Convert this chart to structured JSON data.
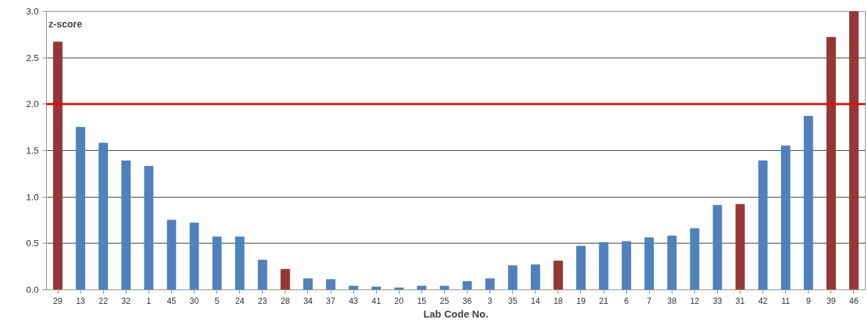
{
  "chart_data": {
    "type": "bar",
    "xlabel": "Lab Code No.",
    "ylabel": "z-score",
    "categories": [
      "29",
      "13",
      "22",
      "32",
      "1",
      "45",
      "30",
      "5",
      "24",
      "23",
      "28",
      "34",
      "37",
      "43",
      "41",
      "20",
      "15",
      "25",
      "36",
      "3",
      "35",
      "14",
      "18",
      "19",
      "21",
      "6",
      "7",
      "38",
      "12",
      "33",
      "31",
      "42",
      "11",
      "9",
      "39",
      "46"
    ],
    "values": [
      2.67,
      1.75,
      1.58,
      1.39,
      1.33,
      0.75,
      0.72,
      0.57,
      0.57,
      0.32,
      0.22,
      0.12,
      0.11,
      0.04,
      0.03,
      0.02,
      0.04,
      0.04,
      0.09,
      0.12,
      0.26,
      0.27,
      0.31,
      0.47,
      0.51,
      0.52,
      0.56,
      0.58,
      0.66,
      0.91,
      0.92,
      1.39,
      1.55,
      1.87,
      2.72,
      3.0
    ],
    "colors": [
      "#953735",
      "#4f81bd",
      "#4f81bd",
      "#4f81bd",
      "#4f81bd",
      "#4f81bd",
      "#4f81bd",
      "#4f81bd",
      "#4f81bd",
      "#4f81bd",
      "#953735",
      "#4f81bd",
      "#4f81bd",
      "#4f81bd",
      "#4f81bd",
      "#4f81bd",
      "#4f81bd",
      "#4f81bd",
      "#4f81bd",
      "#4f81bd",
      "#4f81bd",
      "#4f81bd",
      "#953735",
      "#4f81bd",
      "#4f81bd",
      "#4f81bd",
      "#4f81bd",
      "#4f81bd",
      "#4f81bd",
      "#4f81bd",
      "#953735",
      "#4f81bd",
      "#4f81bd",
      "#4f81bd",
      "#953735",
      "#953735"
    ],
    "ylim": [
      0,
      3.0
    ],
    "yticks": [
      {
        "value": 0,
        "label": "0.0"
      },
      {
        "value": 0.5,
        "label": "0.5"
      },
      {
        "value": 1,
        "label": "1.0"
      },
      {
        "value": 1.5,
        "label": "1.5"
      },
      {
        "value": 2,
        "label": "2.0"
      },
      {
        "value": 2.5,
        "label": "2.5"
      },
      {
        "value": 3,
        "label": "3.0"
      }
    ],
    "ref_lines": [
      {
        "axis": "y",
        "value": 2,
        "color": "#ff0000"
      }
    ],
    "grid": "y"
  }
}
